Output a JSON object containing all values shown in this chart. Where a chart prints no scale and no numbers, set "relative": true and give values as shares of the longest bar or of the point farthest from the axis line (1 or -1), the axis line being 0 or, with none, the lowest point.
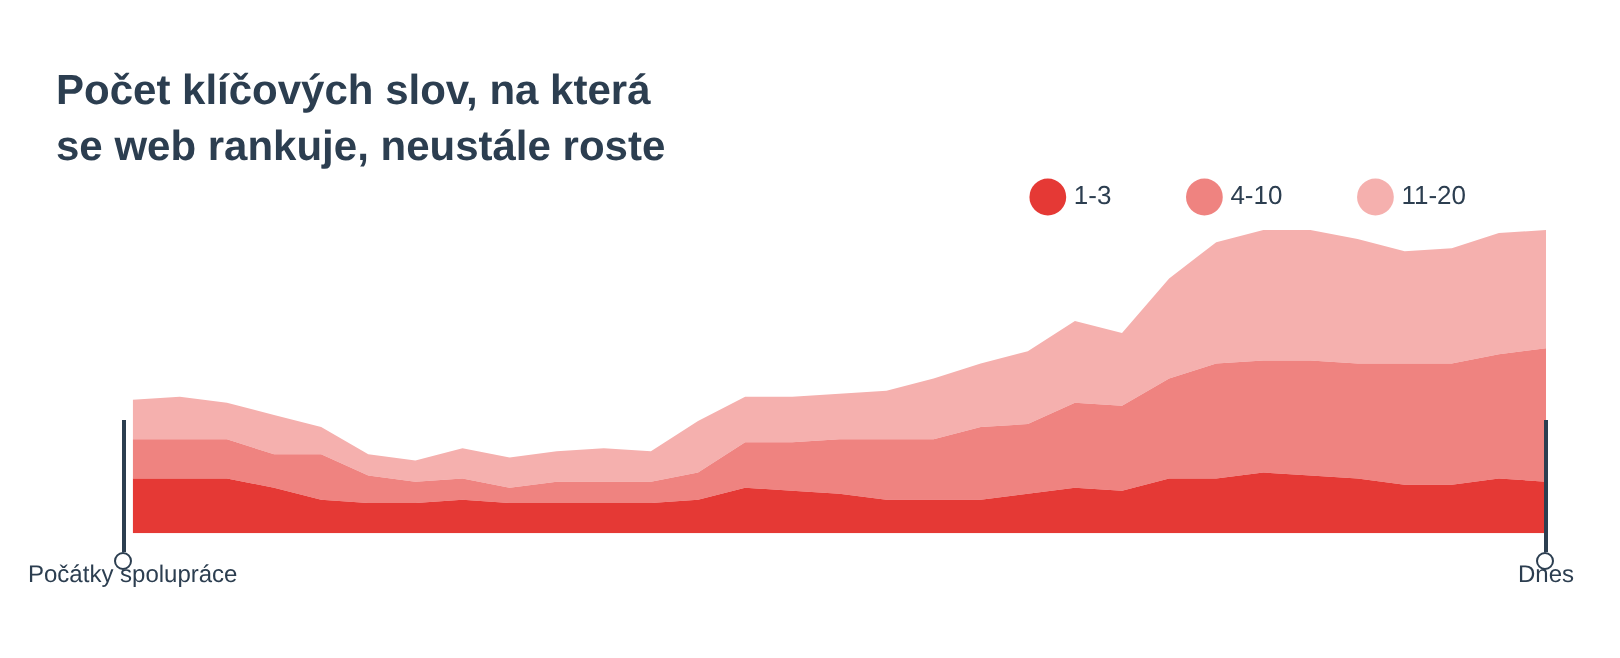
{
  "chart_data": {
    "type": "area",
    "title": "Počet klíčových slov, na která se web rankuje, neustále roste",
    "stacked": true,
    "relative": true,
    "legend": "top right",
    "marker": "none",
    "tick_labels": "x",
    "categories": [
      "Počátky spolupráce",
      null,
      null,
      null,
      null,
      null,
      null,
      null,
      null,
      null,
      null,
      null,
      null,
      null,
      null,
      null,
      null,
      null,
      null,
      null,
      null,
      null,
      null,
      null,
      null,
      null,
      null,
      null,
      null,
      null,
      "Dnes"
    ],
    "series": [
      {
        "name": "1-3",
        "color": "#e53935",
        "values": [
          0.18,
          0.18,
          0.18,
          0.15,
          0.11,
          0.1,
          0.1,
          0.11,
          0.1,
          0.1,
          0.1,
          0.1,
          0.11,
          0.15,
          0.14,
          0.13,
          0.11,
          0.11,
          0.11,
          0.13,
          0.15,
          0.14,
          0.18,
          0.18,
          0.2,
          0.19,
          0.18,
          0.16,
          0.16,
          0.18,
          0.17
        ]
      },
      {
        "name": "4-10",
        "color": "#ef8380",
        "values": [
          0.13,
          0.13,
          0.13,
          0.11,
          0.15,
          0.09,
          0.07,
          0.07,
          0.05,
          0.07,
          0.07,
          0.07,
          0.09,
          0.15,
          0.16,
          0.18,
          0.2,
          0.2,
          0.24,
          0.23,
          0.28,
          0.28,
          0.33,
          0.38,
          0.37,
          0.38,
          0.38,
          0.4,
          0.4,
          0.41,
          0.44
        ]
      },
      {
        "name": "11-20",
        "color": "#f5b0ae",
        "values": [
          0.13,
          0.14,
          0.12,
          0.13,
          0.09,
          0.07,
          0.07,
          0.1,
          0.1,
          0.1,
          0.11,
          0.1,
          0.17,
          0.15,
          0.15,
          0.15,
          0.16,
          0.2,
          0.21,
          0.24,
          0.27,
          0.24,
          0.33,
          0.4,
          0.43,
          0.43,
          0.41,
          0.37,
          0.38,
          0.4,
          0.39
        ]
      }
    ]
  }
}
